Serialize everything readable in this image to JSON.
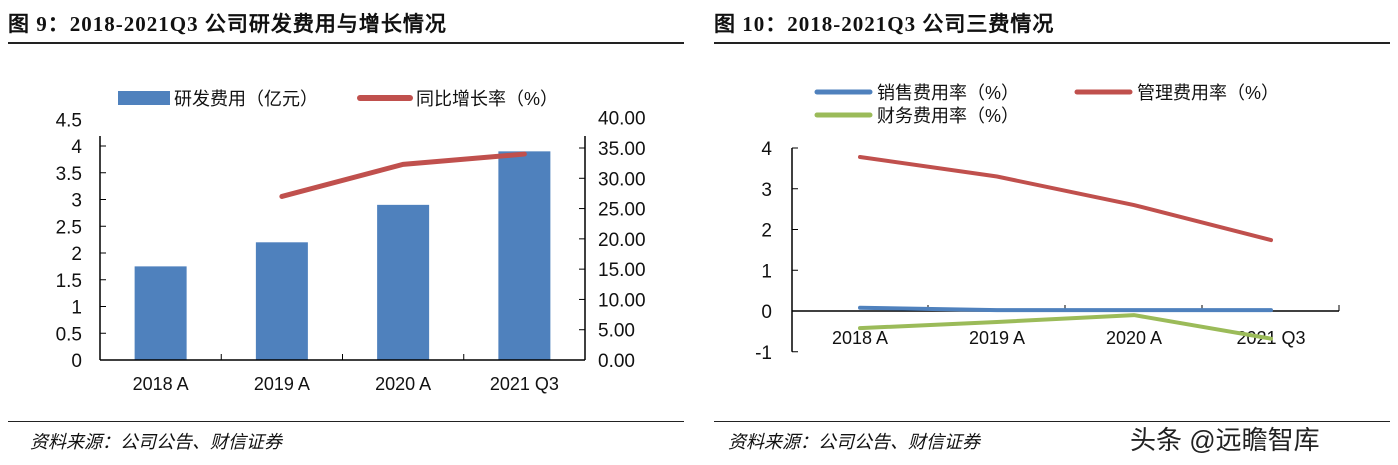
{
  "watermark": "头条 @远瞻智库",
  "chart_data": [
    {
      "type": "bar",
      "title": "图 9：2018-2021Q3 公司研发费用与增长情况",
      "source": "资料来源：公司公告、财信证券",
      "categories": [
        "2018 A",
        "2019 A",
        "2020 A",
        "2021 Q3"
      ],
      "series": [
        {
          "name": "研发费用（亿元）",
          "type": "bar",
          "axis": "left",
          "color": "#4f81bd",
          "values": [
            1.75,
            2.2,
            2.9,
            3.9
          ]
        },
        {
          "name": "同比增长率（%）",
          "type": "line",
          "axis": "right",
          "color": "#c0504d",
          "values": [
            null,
            27.0,
            32.3,
            34.0
          ]
        }
      ],
      "ylim": [
        0,
        4.5
      ],
      "yticks": [
        "0",
        "0.5",
        "1",
        "1.5",
        "2",
        "2.5",
        "3",
        "3.5",
        "4",
        "4.5"
      ],
      "y2lim": [
        0,
        40
      ],
      "y2ticks": [
        "0.00",
        "5.00",
        "10.00",
        "15.00",
        "20.00",
        "25.00",
        "30.00",
        "35.00",
        "40.00"
      ],
      "legend": "top"
    },
    {
      "type": "line",
      "title": "图 10：2018-2021Q3 公司三费情况",
      "source": "资料来源：公司公告、财信证券",
      "categories": [
        "2018 A",
        "2019 A",
        "2020 A",
        "2021 Q3"
      ],
      "series": [
        {
          "name": "销售费用率（%）",
          "color": "#4f81bd",
          "values": [
            0.08,
            0.02,
            0.02,
            0.02
          ]
        },
        {
          "name": "管理费用率（%）",
          "color": "#c0504d",
          "values": [
            3.78,
            3.3,
            2.6,
            1.74
          ]
        },
        {
          "name": "财务费用率（%）",
          "color": "#9bbb59",
          "values": [
            -0.42,
            -0.27,
            -0.1,
            -0.68
          ]
        }
      ],
      "ylim": [
        -1,
        4
      ],
      "yticks": [
        "-1",
        "0",
        "1",
        "2",
        "3",
        "4"
      ],
      "legend": "top"
    }
  ]
}
